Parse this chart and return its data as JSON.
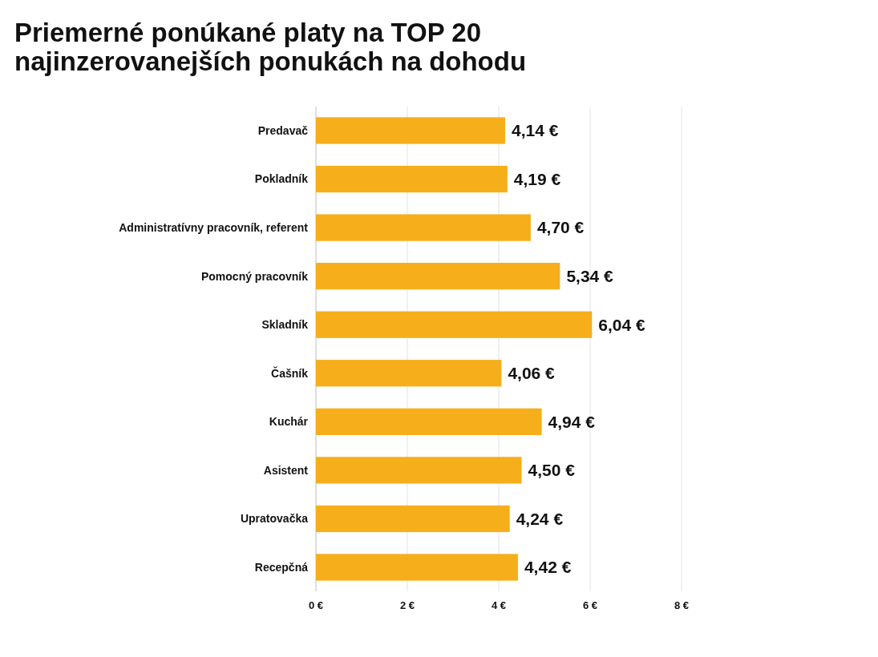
{
  "chart_data": {
    "type": "bar",
    "orientation": "horizontal",
    "title": "Priemerné ponúkané platy na TOP 20 najinzerovanejších ponukách na dohodu",
    "categories": [
      "Predavač",
      "Pokladník",
      "Administratívny pracovník, referent",
      "Pomocný pracovník",
      "Skladník",
      "Čašník",
      "Kuchár",
      "Asistent",
      "Upratovačka",
      "Recepčná"
    ],
    "values": [
      4.14,
      4.19,
      4.7,
      5.34,
      6.04,
      4.06,
      4.94,
      4.5,
      4.24,
      4.42
    ],
    "value_labels": [
      "4,14 €",
      "4,19 €",
      "4,70 €",
      "5,34 €",
      "6,04 €",
      "4,06 €",
      "4,94 €",
      "4,50 €",
      "4,24 €",
      "4,42 €"
    ],
    "color": "#f7ae1b",
    "xlim": [
      0,
      8
    ],
    "xticks": [
      {
        "value": 0,
        "label": "0 €"
      },
      {
        "value": 2,
        "label": "2 €"
      },
      {
        "value": 4,
        "label": "4 €"
      },
      {
        "value": 6,
        "label": "6 €"
      },
      {
        "value": 8,
        "label": "8 €"
      }
    ],
    "grid": "x"
  }
}
